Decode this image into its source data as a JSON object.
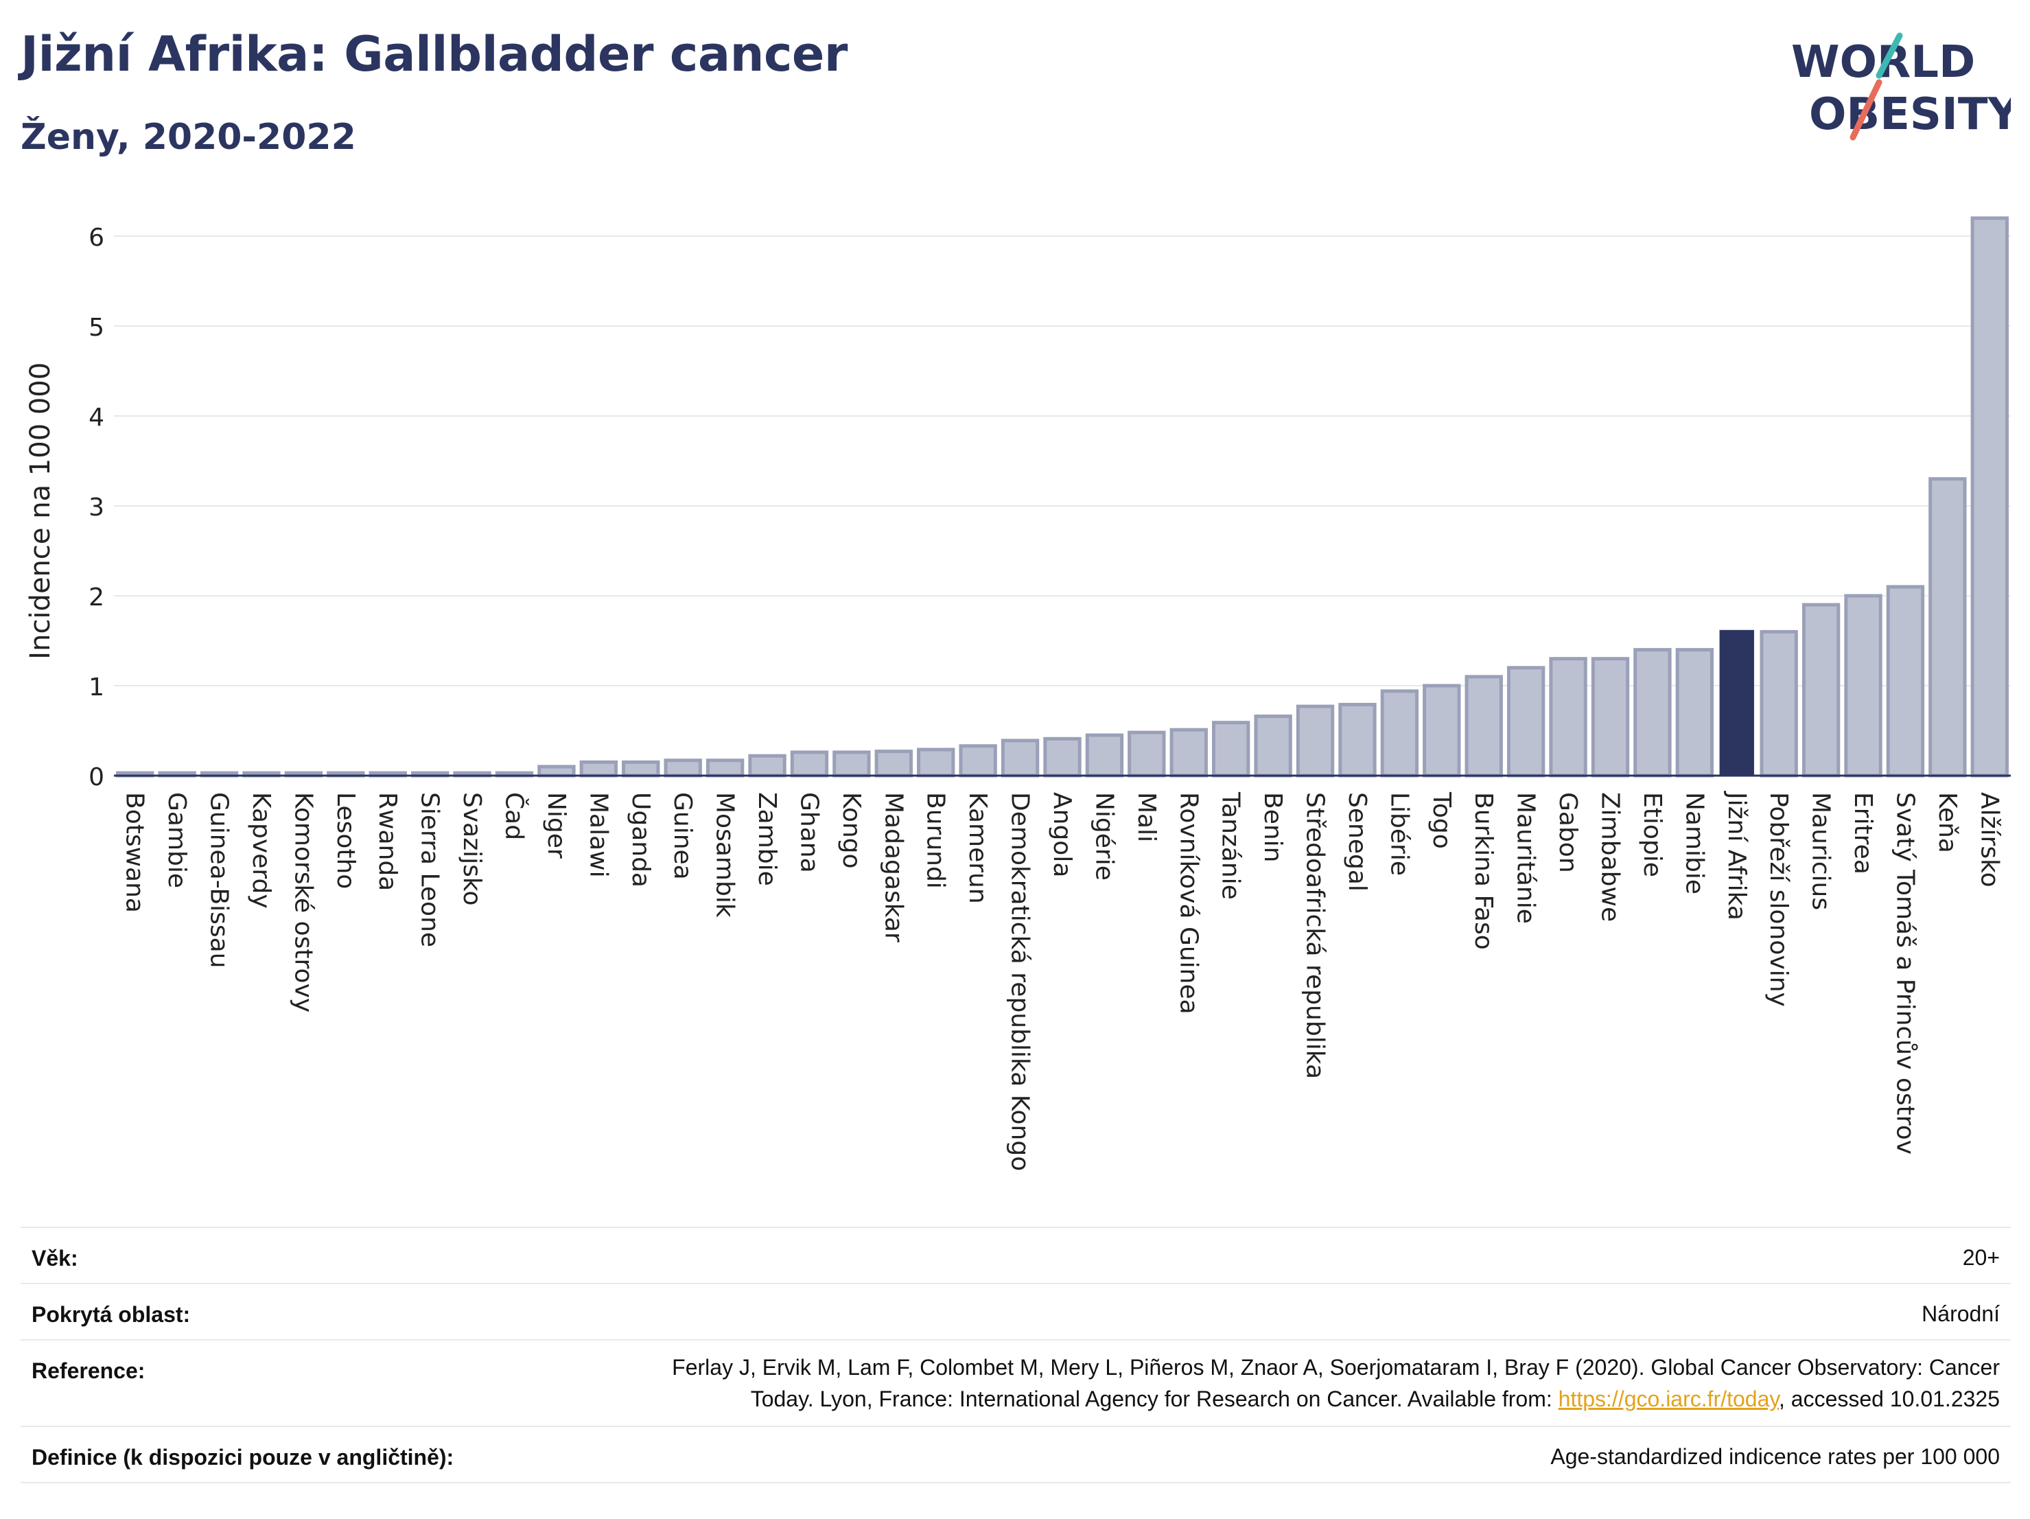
{
  "header": {
    "title": "Jižní Afrika: Gallbladder cancer",
    "subtitle": "Ženy, 2020-2022"
  },
  "logo": {
    "line1": "WORLD",
    "line2": "OBESITY"
  },
  "colors": {
    "highlight": "#2b3560",
    "bar_fill": "#bcc1d1",
    "bar_stroke": "#9aa0b8",
    "text": "#2b3560",
    "link": "#e3a21a"
  },
  "chart_data": {
    "type": "bar",
    "ylabel": "Incidence na 100 000",
    "ylim": [
      0,
      6.5
    ],
    "yticks": [
      0,
      1,
      2,
      3,
      4,
      5,
      6
    ],
    "grid": true,
    "highlight_category": "Jižní Afrika",
    "categories": [
      "Botswana",
      "Gambie",
      "Guinea-Bissau",
      "Kapverdy",
      "Komorské ostrovy",
      "Lesotho",
      "Rwanda",
      "Sierra Leone",
      "Svazijsko",
      "Čad",
      "Niger",
      "Malawi",
      "Uganda",
      "Guinea",
      "Mosambik",
      "Zambie",
      "Ghana",
      "Kongo",
      "Madagaskar",
      "Burundi",
      "Kamerun",
      "Demokratická republika Kongo",
      "Angola",
      "Nigérie",
      "Mali",
      "Rovníková Guinea",
      "Tanzánie",
      "Benin",
      "Středoafrická republika",
      "Senegal",
      "Libérie",
      "Togo",
      "Burkina Faso",
      "Mauritánie",
      "Gabon",
      "Zimbabwe",
      "Etiopie",
      "Namibie",
      "Jižní Afrika",
      "Pobřeží slonoviny",
      "Mauricius",
      "Eritrea",
      "Svatý Tomáš a Princův ostrov",
      "Keňa",
      "Alžírsko"
    ],
    "values": [
      0.03,
      0.03,
      0.03,
      0.03,
      0.03,
      0.03,
      0.03,
      0.03,
      0.03,
      0.03,
      0.1,
      0.15,
      0.15,
      0.17,
      0.17,
      0.22,
      0.26,
      0.26,
      0.27,
      0.29,
      0.33,
      0.39,
      0.41,
      0.45,
      0.48,
      0.51,
      0.59,
      0.66,
      0.77,
      0.79,
      0.94,
      1.0,
      1.1,
      1.2,
      1.3,
      1.3,
      1.4,
      1.4,
      1.62,
      1.6,
      1.9,
      2.0,
      2.1,
      3.3,
      6.2
    ]
  },
  "info": {
    "age_label": "Věk:",
    "age_value": "20+",
    "area_label": "Pokrytá oblast:",
    "area_value": "Národní",
    "reference_label": "Reference:",
    "reference_line1": "Ferlay J, Ervik M, Lam F, Colombet M, Mery L, Piñeros M, Znaor A, Soerjomataram I, Bray F (2020). Global Cancer Observatory: Cancer",
    "reference_line2_pre": "Today. Lyon, France: International Agency for Research on Cancer. Available from: ",
    "reference_link": "https://gco.iarc.fr/today",
    "reference_line2_post": ", accessed 10.01.2325",
    "definition_label": "Definice (k dispozici pouze v angličtině):",
    "definition_value": "Age-standardized indicence rates per 100 000"
  }
}
